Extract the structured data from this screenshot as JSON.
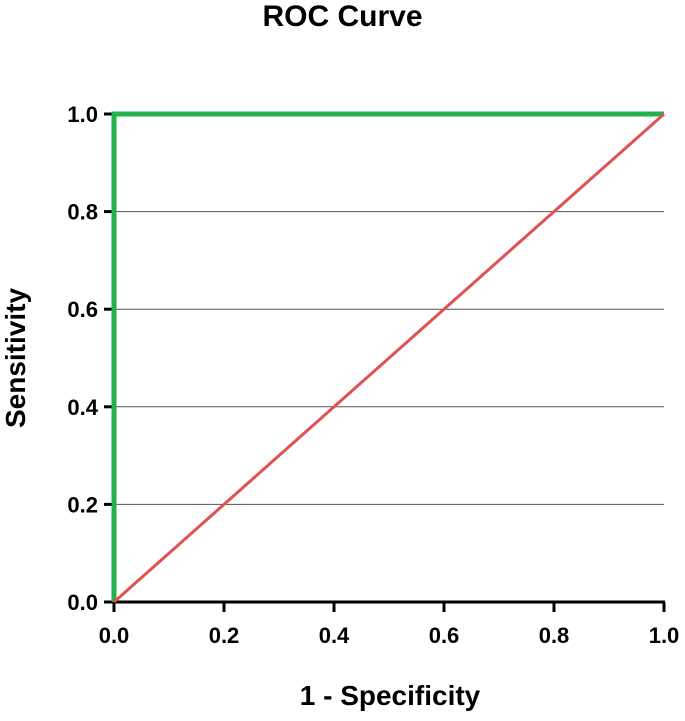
{
  "chart_data": {
    "type": "line",
    "title": "ROC Curve",
    "xlabel": "1 - Specificity",
    "ylabel": "Sensitivity",
    "xlim": [
      0.0,
      1.0
    ],
    "ylim": [
      0.0,
      1.0
    ],
    "x_ticks": [
      "0.0",
      "0.2",
      "0.4",
      "0.6",
      "0.8",
      "1.0"
    ],
    "y_ticks": [
      "0.0",
      "0.2",
      "0.4",
      "0.6",
      "0.8",
      "1.0"
    ],
    "grid": "horizontal",
    "legend": "none",
    "series": [
      {
        "color": "#22b14c",
        "points": [
          [
            0.0,
            0.0
          ],
          [
            0.0,
            1.0
          ],
          [
            1.0,
            1.0
          ]
        ]
      },
      {
        "color": "#e05252",
        "points": [
          [
            0.0,
            0.0
          ],
          [
            1.0,
            1.0
          ]
        ]
      }
    ]
  }
}
